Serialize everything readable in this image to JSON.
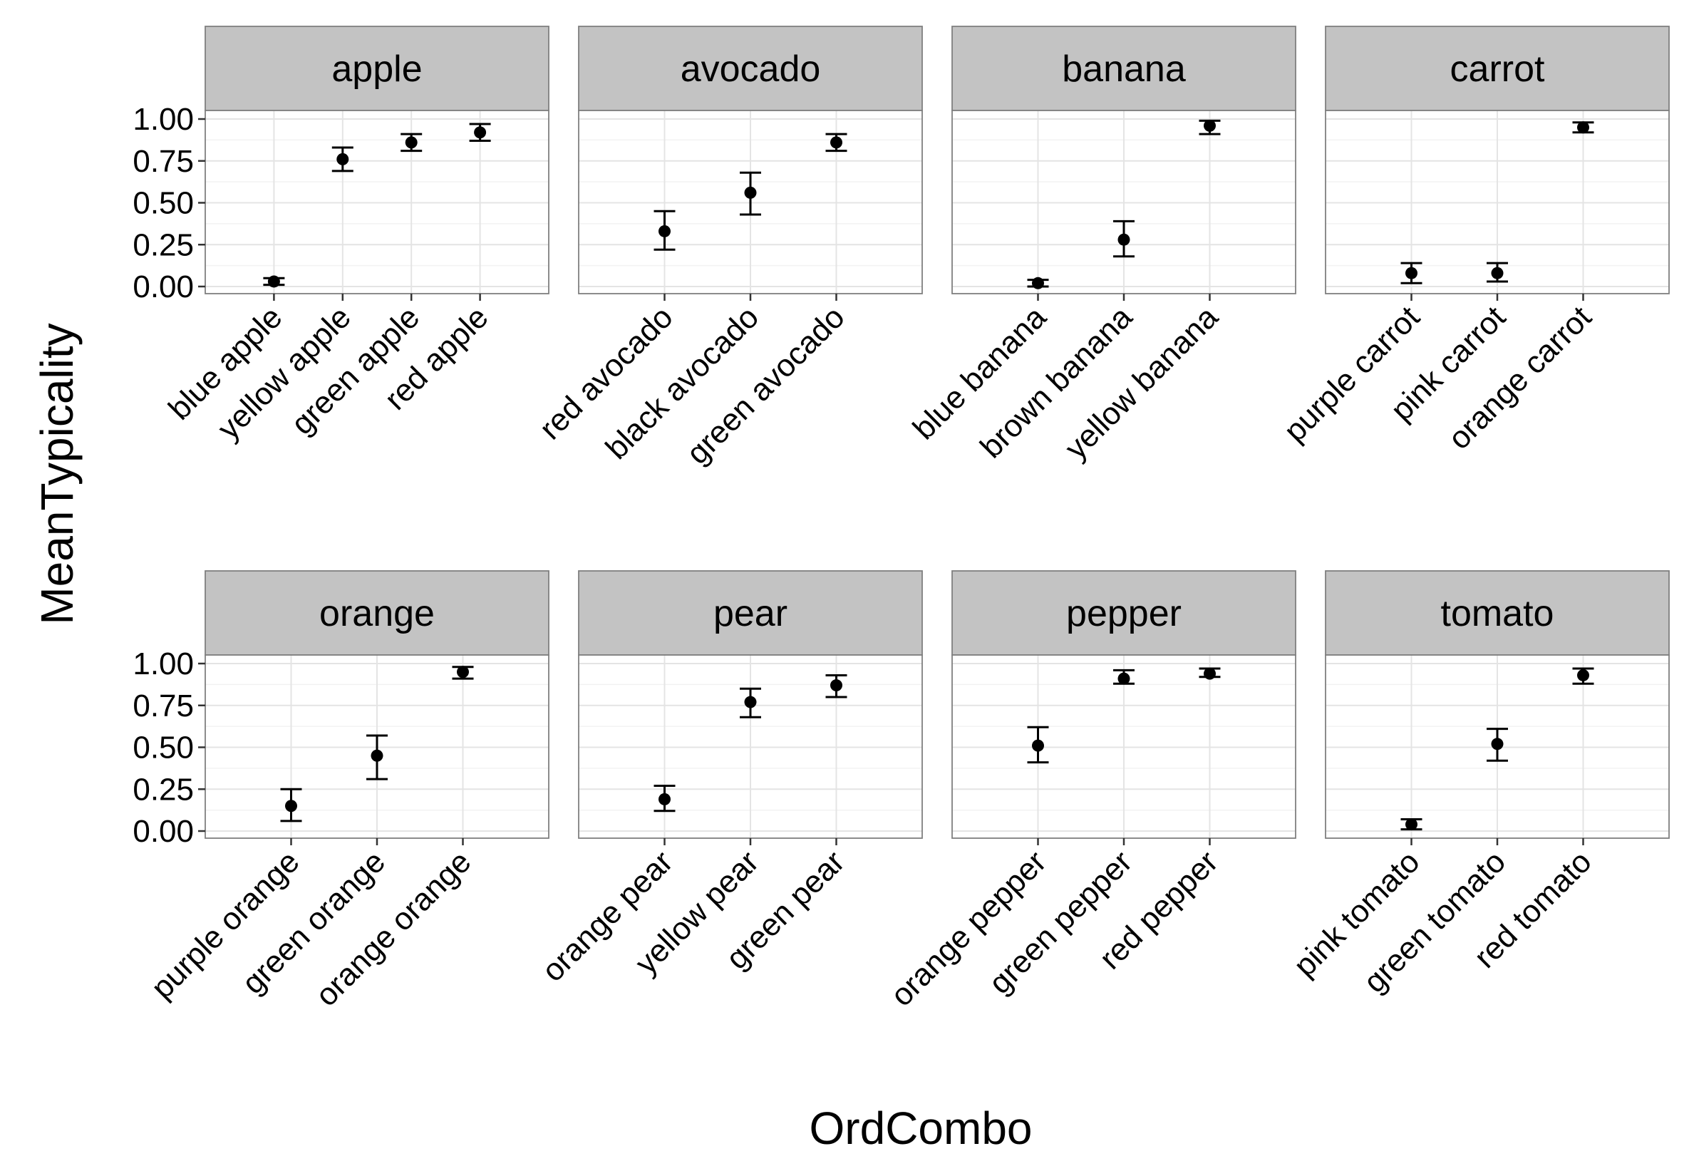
{
  "chart_data": {
    "type": "scatter",
    "xlabel": "OrdCombo",
    "ylabel": "MeanTypicality",
    "ylim": [
      0,
      1
    ],
    "yticks": [
      "0.00",
      "0.25",
      "0.50",
      "0.75",
      "1.00"
    ],
    "grid": true,
    "style": {
      "point_color": "#000000",
      "strip_fill": "#c3c3c3",
      "grid_color": "#e4e4e4"
    },
    "facets": [
      {
        "name": "apple",
        "categories": [
          "blue apple",
          "yellow apple",
          "green apple",
          "red apple"
        ],
        "values": [
          0.03,
          0.76,
          0.86,
          0.92
        ],
        "lower": [
          0.01,
          0.69,
          0.81,
          0.87
        ],
        "upper": [
          0.05,
          0.83,
          0.91,
          0.97
        ]
      },
      {
        "name": "avocado",
        "categories": [
          "red avocado",
          "black avocado",
          "green avocado"
        ],
        "values": [
          0.33,
          0.56,
          0.86
        ],
        "lower": [
          0.22,
          0.43,
          0.81
        ],
        "upper": [
          0.45,
          0.68,
          0.91
        ]
      },
      {
        "name": "banana",
        "categories": [
          "blue banana",
          "brown banana",
          "yellow banana"
        ],
        "values": [
          0.02,
          0.28,
          0.96
        ],
        "lower": [
          0.0,
          0.18,
          0.91
        ],
        "upper": [
          0.04,
          0.39,
          0.99
        ]
      },
      {
        "name": "carrot",
        "categories": [
          "purple carrot",
          "pink carrot",
          "orange carrot"
        ],
        "values": [
          0.08,
          0.08,
          0.95
        ],
        "lower": [
          0.02,
          0.03,
          0.92
        ],
        "upper": [
          0.14,
          0.14,
          0.98
        ]
      },
      {
        "name": "orange",
        "categories": [
          "purple orange",
          "green orange",
          "orange orange"
        ],
        "values": [
          0.15,
          0.45,
          0.95
        ],
        "lower": [
          0.06,
          0.31,
          0.91
        ],
        "upper": [
          0.25,
          0.57,
          0.98
        ]
      },
      {
        "name": "pear",
        "categories": [
          "orange pear",
          "yellow pear",
          "green pear"
        ],
        "values": [
          0.19,
          0.77,
          0.87
        ],
        "lower": [
          0.12,
          0.68,
          0.8
        ],
        "upper": [
          0.27,
          0.85,
          0.93
        ]
      },
      {
        "name": "pepper",
        "categories": [
          "orange pepper",
          "green pepper",
          "red pepper"
        ],
        "values": [
          0.51,
          0.91,
          0.94
        ],
        "lower": [
          0.41,
          0.88,
          0.92
        ],
        "upper": [
          0.62,
          0.96,
          0.97
        ]
      },
      {
        "name": "tomato",
        "categories": [
          "pink tomato",
          "green tomato",
          "red tomato"
        ],
        "values": [
          0.04,
          0.52,
          0.93
        ],
        "lower": [
          0.01,
          0.42,
          0.88
        ],
        "upper": [
          0.07,
          0.61,
          0.97
        ]
      }
    ]
  }
}
